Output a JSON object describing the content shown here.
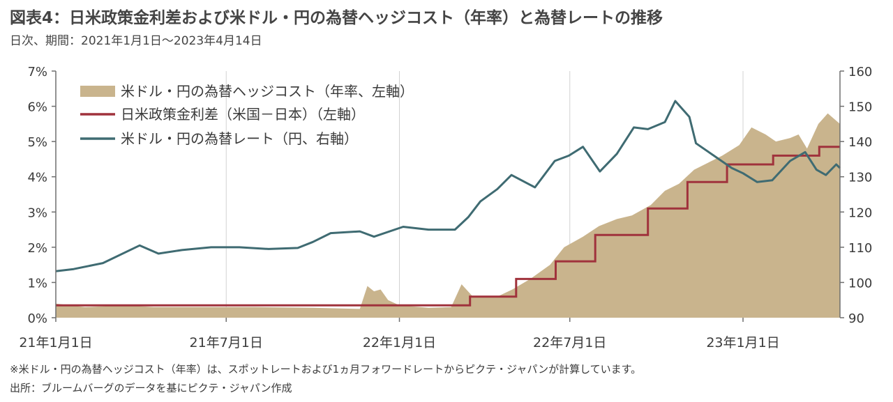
{
  "header": {
    "title": "図表4：日米政策金利差および米ドル・円の為替ヘッジコスト（年率）と為替レートの推移",
    "subtitle": "日次、期間：2021年1月1日～2023年4月14日"
  },
  "footer": {
    "note": "※米ドル・円の為替ヘッジコスト（年率）は、スポットレートおよび1ヵ月フォワードレートからピクテ・ジャパンが計算しています。",
    "source": "出所：ブルームバーグのデータを基にピクテ・ジャパン作成"
  },
  "colors": {
    "area": "#c9b48d",
    "policy": "#a0323c",
    "fx": "#3f6b72",
    "grid": "#d2d2d2",
    "axis": "#6e6e6e"
  },
  "chart_data": {
    "type": "line",
    "x_unit": "date",
    "x_range": [
      "2021-01-01",
      "2023-04-14"
    ],
    "x_ticks": [
      {
        "date": "2021-01-01",
        "label": "21年1月1日"
      },
      {
        "date": "2021-07-01",
        "label": "21年7月1日"
      },
      {
        "date": "2022-01-01",
        "label": "22年1月1日"
      },
      {
        "date": "2022-07-01",
        "label": "22年7月1日"
      },
      {
        "date": "2023-01-01",
        "label": "23年1月1日"
      }
    ],
    "y_left": {
      "range": [
        0,
        7
      ],
      "unit": "%",
      "ticks": [
        "0%",
        "1%",
        "2%",
        "3%",
        "4%",
        "5%",
        "6%",
        "7%"
      ]
    },
    "y_right": {
      "range": [
        90,
        160
      ],
      "ticks": [
        "90",
        "100",
        "110",
        "120",
        "130",
        "140",
        "150",
        "160"
      ]
    },
    "grid": "vertical",
    "legend_position": "top-left",
    "legend": [
      "米ドル・円の為替ヘッジコスト（年率、左軸）",
      "日米政策金利差（米国－日本）（左軸）",
      "米ドル・円の為替レート（円、右軸）"
    ],
    "series": [
      {
        "name": "米ドル・円の為替ヘッジコスト（年率、左軸）",
        "type": "area",
        "axis": "left",
        "points": [
          [
            "2021-01-01",
            0.4
          ],
          [
            "2021-02-01",
            0.3
          ],
          [
            "2021-03-15",
            0.35
          ],
          [
            "2021-04-15",
            0.3
          ],
          [
            "2021-06-01",
            0.3
          ],
          [
            "2021-08-01",
            0.3
          ],
          [
            "2021-10-01",
            0.28
          ],
          [
            "2021-11-20",
            0.25
          ],
          [
            "2021-11-28",
            0.9
          ],
          [
            "2021-12-05",
            0.75
          ],
          [
            "2021-12-12",
            0.8
          ],
          [
            "2021-12-20",
            0.5
          ],
          [
            "2022-01-01",
            0.35
          ],
          [
            "2022-02-01",
            0.28
          ],
          [
            "2022-02-25",
            0.3
          ],
          [
            "2022-03-08",
            0.95
          ],
          [
            "2022-03-20",
            0.6
          ],
          [
            "2022-04-15",
            0.6
          ],
          [
            "2022-05-01",
            0.8
          ],
          [
            "2022-05-20",
            1.1
          ],
          [
            "2022-06-10",
            1.5
          ],
          [
            "2022-06-25",
            2.0
          ],
          [
            "2022-07-15",
            2.3
          ],
          [
            "2022-08-01",
            2.6
          ],
          [
            "2022-08-20",
            2.8
          ],
          [
            "2022-09-05",
            2.9
          ],
          [
            "2022-09-25",
            3.2
          ],
          [
            "2022-10-10",
            3.6
          ],
          [
            "2022-10-25",
            3.8
          ],
          [
            "2022-11-10",
            4.2
          ],
          [
            "2022-11-25",
            4.4
          ],
          [
            "2022-12-10",
            4.6
          ],
          [
            "2022-12-28",
            4.9
          ],
          [
            "2023-01-10",
            5.4
          ],
          [
            "2023-01-25",
            5.2
          ],
          [
            "2023-02-05",
            5.0
          ],
          [
            "2023-02-20",
            5.1
          ],
          [
            "2023-03-01",
            5.2
          ],
          [
            "2023-03-10",
            4.8
          ],
          [
            "2023-03-22",
            5.5
          ],
          [
            "2023-04-01",
            5.8
          ],
          [
            "2023-04-14",
            5.5
          ]
        ]
      },
      {
        "name": "日米政策金利差（米国－日本）（左軸）",
        "type": "step",
        "axis": "left",
        "points": [
          [
            "2021-01-01",
            0.35
          ],
          [
            "2022-03-17",
            0.6
          ],
          [
            "2022-05-05",
            1.1
          ],
          [
            "2022-06-16",
            1.6
          ],
          [
            "2022-07-28",
            2.35
          ],
          [
            "2022-09-22",
            3.1
          ],
          [
            "2022-11-03",
            3.85
          ],
          [
            "2022-12-15",
            4.35
          ],
          [
            "2023-02-02",
            4.6
          ],
          [
            "2023-03-23",
            4.85
          ],
          [
            "2023-04-14",
            4.85
          ]
        ]
      },
      {
        "name": "米ドル・円の為替レート（円、右軸）",
        "type": "line",
        "axis": "right",
        "points": [
          [
            "2021-01-01",
            103.2
          ],
          [
            "2021-01-20",
            103.8
          ],
          [
            "2021-02-20",
            105.5
          ],
          [
            "2021-03-31",
            110.5
          ],
          [
            "2021-04-20",
            108.2
          ],
          [
            "2021-05-15",
            109.2
          ],
          [
            "2021-06-15",
            110.0
          ],
          [
            "2021-07-15",
            110.0
          ],
          [
            "2021-08-15",
            109.5
          ],
          [
            "2021-09-15",
            109.8
          ],
          [
            "2021-10-01",
            111.5
          ],
          [
            "2021-10-20",
            114.0
          ],
          [
            "2021-11-20",
            114.5
          ],
          [
            "2021-12-05",
            113.0
          ],
          [
            "2022-01-05",
            115.8
          ],
          [
            "2022-02-01",
            115.0
          ],
          [
            "2022-03-01",
            115.0
          ],
          [
            "2022-03-15",
            118.5
          ],
          [
            "2022-03-28",
            123.0
          ],
          [
            "2022-04-15",
            126.5
          ],
          [
            "2022-04-30",
            130.5
          ],
          [
            "2022-05-25",
            127.0
          ],
          [
            "2022-06-15",
            134.5
          ],
          [
            "2022-06-30",
            136.0
          ],
          [
            "2022-07-15",
            138.5
          ],
          [
            "2022-08-02",
            131.5
          ],
          [
            "2022-08-20",
            136.5
          ],
          [
            "2022-09-07",
            144.0
          ],
          [
            "2022-09-22",
            143.5
          ],
          [
            "2022-10-10",
            145.5
          ],
          [
            "2022-10-21",
            151.5
          ],
          [
            "2022-11-05",
            147.0
          ],
          [
            "2022-11-12",
            139.5
          ],
          [
            "2022-12-01",
            136.0
          ],
          [
            "2022-12-20",
            132.5
          ],
          [
            "2023-01-01",
            131.0
          ],
          [
            "2023-01-16",
            128.5
          ],
          [
            "2023-02-01",
            129.0
          ],
          [
            "2023-02-20",
            134.5
          ],
          [
            "2023-03-08",
            137.0
          ],
          [
            "2023-03-20",
            132.0
          ],
          [
            "2023-03-30",
            130.5
          ],
          [
            "2023-04-10",
            133.5
          ],
          [
            "2023-04-14",
            132.5
          ]
        ]
      }
    ]
  }
}
